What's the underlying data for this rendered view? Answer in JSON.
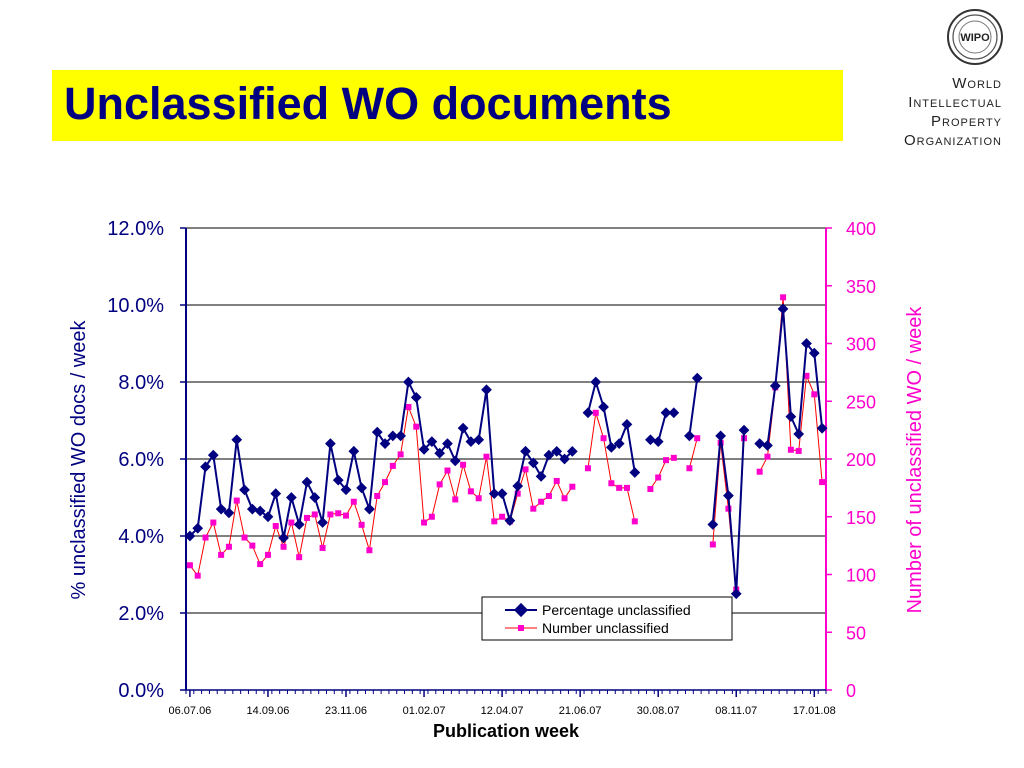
{
  "header": {
    "title": "Unclassified WO documents",
    "org_lines": [
      "World",
      "Intellectual",
      "Property",
      "Organization"
    ],
    "logo_text": "WIPO"
  },
  "colors": {
    "title_bg": "#ffff00",
    "title_text": "#000080",
    "series_percentage": "#000080",
    "series_number": "#ff00cc",
    "number_line": "#ff0000"
  },
  "chart_data": {
    "type": "line",
    "xlabel": "Publication week",
    "ylabel_left": "% unclassified WO docs / week",
    "ylabel_right": "Number of unclassified WO / week",
    "x_tick_labels": [
      "06.07.06",
      "14.09.06",
      "23.11.06",
      "01.02.07",
      "12.04.07",
      "21.06.07",
      "30.08.07",
      "08.11.07",
      "17.01.08"
    ],
    "y_left_ticks": [
      "0.0%",
      "2.0%",
      "4.0%",
      "6.0%",
      "8.0%",
      "10.0%",
      "12.0%"
    ],
    "y_right_ticks": [
      "0",
      "50",
      "100",
      "150",
      "200",
      "250",
      "300",
      "350",
      "400"
    ],
    "ylim_left": [
      0,
      12
    ],
    "ylim_right": [
      0,
      400
    ],
    "grid": "horizontal",
    "legend_placement": "bottom-center",
    "week_count": 82,
    "series": [
      {
        "name": "Percentage unclassified",
        "axis": "left",
        "values": [
          4.0,
          4.2,
          5.8,
          6.1,
          4.7,
          4.6,
          6.5,
          5.2,
          4.7,
          4.65,
          4.5,
          5.1,
          3.95,
          5.0,
          4.3,
          5.4,
          5.0,
          4.35,
          6.4,
          5.45,
          5.2,
          6.2,
          5.25,
          4.7,
          6.7,
          6.4,
          6.6,
          6.6,
          8.0,
          7.6,
          6.25,
          6.45,
          6.15,
          6.4,
          5.95,
          6.8,
          6.45,
          6.5,
          7.8,
          5.1,
          5.1,
          4.4,
          5.3,
          6.2,
          5.9,
          5.55,
          6.1,
          6.2,
          6.0,
          6.2,
          null,
          7.2,
          8.0,
          7.35,
          6.3,
          6.4,
          6.9,
          5.65,
          null,
          6.5,
          6.45,
          7.2,
          7.2,
          null,
          6.6,
          8.1,
          null,
          4.3,
          6.6,
          5.05,
          2.5,
          6.75,
          null,
          6.4,
          6.35,
          7.9,
          9.9,
          7.1,
          6.65,
          9.0,
          8.75,
          6.8
        ]
      },
      {
        "name": "Number unclassified",
        "axis": "right",
        "values": [
          108,
          99,
          132,
          145,
          117,
          124,
          164,
          132,
          125,
          109,
          117,
          142,
          124,
          145,
          115,
          149,
          152,
          123,
          152,
          153,
          151,
          163,
          143,
          121,
          168,
          180,
          194,
          204,
          245,
          228,
          145,
          150,
          178,
          190,
          165,
          195,
          172,
          166,
          202,
          146,
          150,
          146,
          170,
          191,
          157,
          163,
          168,
          181,
          166,
          176,
          null,
          192,
          240,
          218,
          179,
          175,
          175,
          146,
          null,
          174,
          184,
          199,
          201,
          null,
          192,
          218,
          null,
          126,
          214,
          157,
          87,
          218,
          null,
          189,
          202,
          262,
          340,
          208,
          207,
          272,
          256,
          180
        ]
      }
    ]
  }
}
